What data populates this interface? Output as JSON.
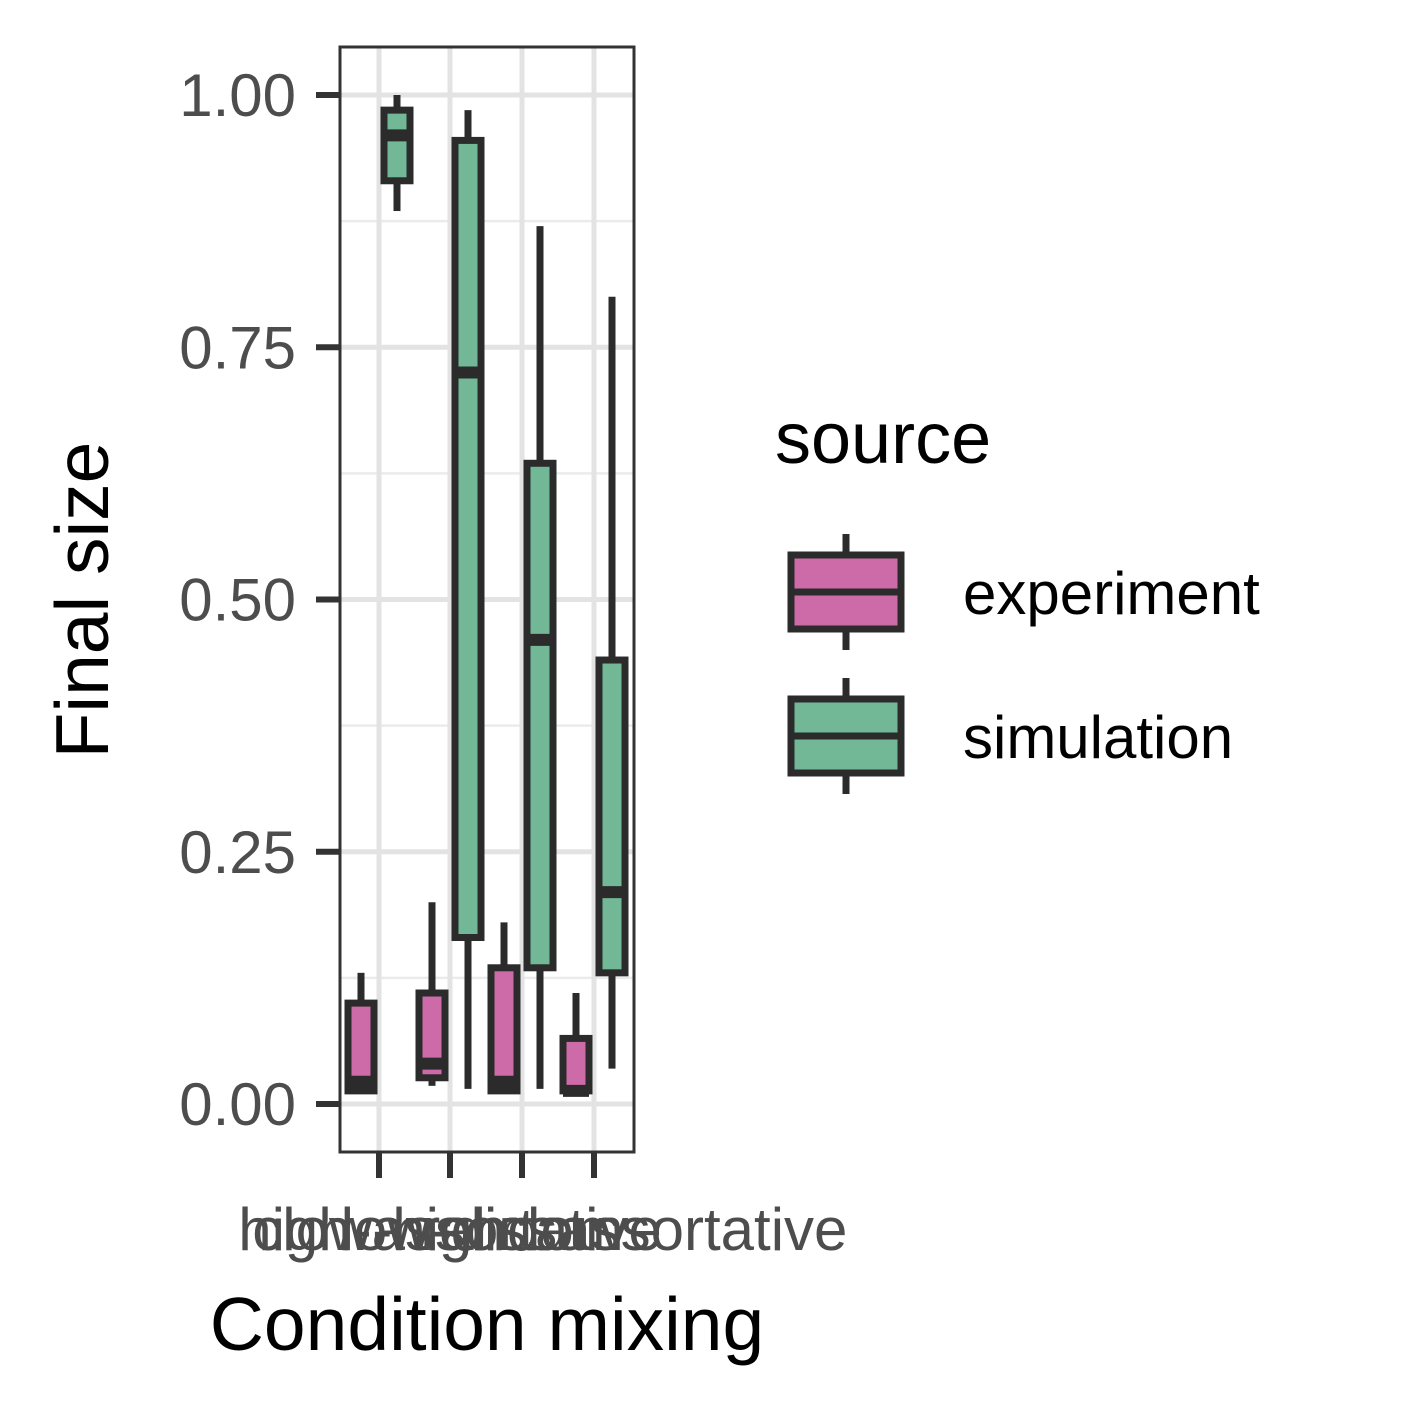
{
  "chart_data": {
    "type": "boxplot",
    "xlabel": "Condition mixing",
    "ylabel": "Final size",
    "ylim": [
      -0.045,
      1.05
    ],
    "yticks": [
      "0.00",
      "0.25",
      "0.50",
      "0.75",
      "1.00"
    ],
    "y_tick_values": [
      0,
      0.25,
      0.5,
      0.75,
      1.0
    ],
    "categories": [
      "clow-high",
      "high-assortative",
      "random",
      "low-dissassortative"
    ],
    "grid": true,
    "legend": {
      "title": "source",
      "position": "right"
    },
    "series": [
      {
        "name": "experiment",
        "color": "#CC6BA8",
        "boxes": [
          {
            "whisker_low": 0.013,
            "q1": 0.013,
            "median": 0.022,
            "q3": 0.1,
            "whisker_high": 0.13
          },
          {
            "whisker_low": 0.018,
            "q1": 0.026,
            "median": 0.04,
            "q3": 0.11,
            "whisker_high": 0.2
          },
          {
            "whisker_low": 0.013,
            "q1": 0.013,
            "median": 0.022,
            "q3": 0.135,
            "whisker_high": 0.18
          },
          {
            "whisker_low": 0.013,
            "q1": 0.013,
            "median": 0.013,
            "q3": 0.065,
            "whisker_high": 0.11
          }
        ]
      },
      {
        "name": "simulation",
        "color": "#72B897",
        "boxes": [
          {
            "whisker_low": 0.885,
            "q1": 0.915,
            "median": 0.96,
            "q3": 0.985,
            "whisker_high": 1.0
          },
          {
            "whisker_low": 0.015,
            "q1": 0.165,
            "median": 0.725,
            "q3": 0.955,
            "whisker_high": 0.985
          },
          {
            "whisker_low": 0.015,
            "q1": 0.135,
            "median": 0.46,
            "q3": 0.635,
            "whisker_high": 0.87
          },
          {
            "whisker_low": 0.035,
            "q1": 0.13,
            "median": 0.21,
            "q3": 0.44,
            "whisker_high": 0.8
          }
        ]
      }
    ]
  }
}
